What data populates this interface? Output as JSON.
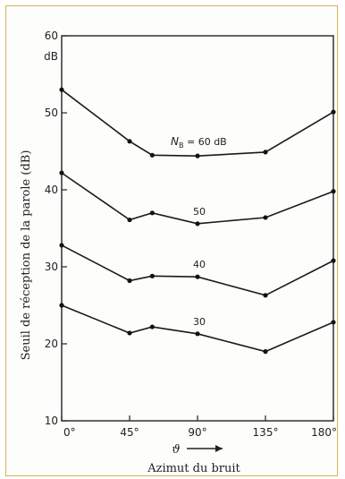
{
  "chart_data": {
    "type": "line",
    "ylabel": "Seuil de réception de la parole (dB)",
    "ylabel_unit": "dB",
    "xlabel": "Azimut du bruit",
    "xsymbol": "ϑ",
    "xticks": [
      {
        "value": 0,
        "label": "0°"
      },
      {
        "value": 45,
        "label": "45°"
      },
      {
        "value": 90,
        "label": "90°"
      },
      {
        "value": 135,
        "label": "135°"
      },
      {
        "value": 180,
        "label": "180°"
      }
    ],
    "yticks": [
      10,
      20,
      30,
      40,
      50,
      60
    ],
    "xlim": [
      0,
      180
    ],
    "ylim": [
      10,
      60
    ],
    "grid": false,
    "series": [
      {
        "name": "N_B = 60 dB",
        "label_main": "N",
        "label_sub": "B",
        "label_tail": " = 60 dB",
        "x": [
          0,
          45,
          60,
          90,
          135,
          180
        ],
        "y": [
          53.0,
          46.3,
          44.5,
          44.4,
          44.9,
          50.1
        ]
      },
      {
        "name": "50",
        "x": [
          0,
          45,
          60,
          90,
          135,
          180
        ],
        "y": [
          42.2,
          36.1,
          37.0,
          35.6,
          36.4,
          39.8
        ]
      },
      {
        "name": "40",
        "x": [
          0,
          45,
          60,
          90,
          135,
          180
        ],
        "y": [
          32.8,
          28.2,
          28.8,
          28.7,
          26.3,
          30.8
        ]
      },
      {
        "name": "30",
        "x": [
          0,
          45,
          60,
          90,
          135,
          180
        ],
        "y": [
          25.0,
          21.4,
          22.2,
          21.3,
          19.0,
          22.8
        ]
      }
    ]
  }
}
